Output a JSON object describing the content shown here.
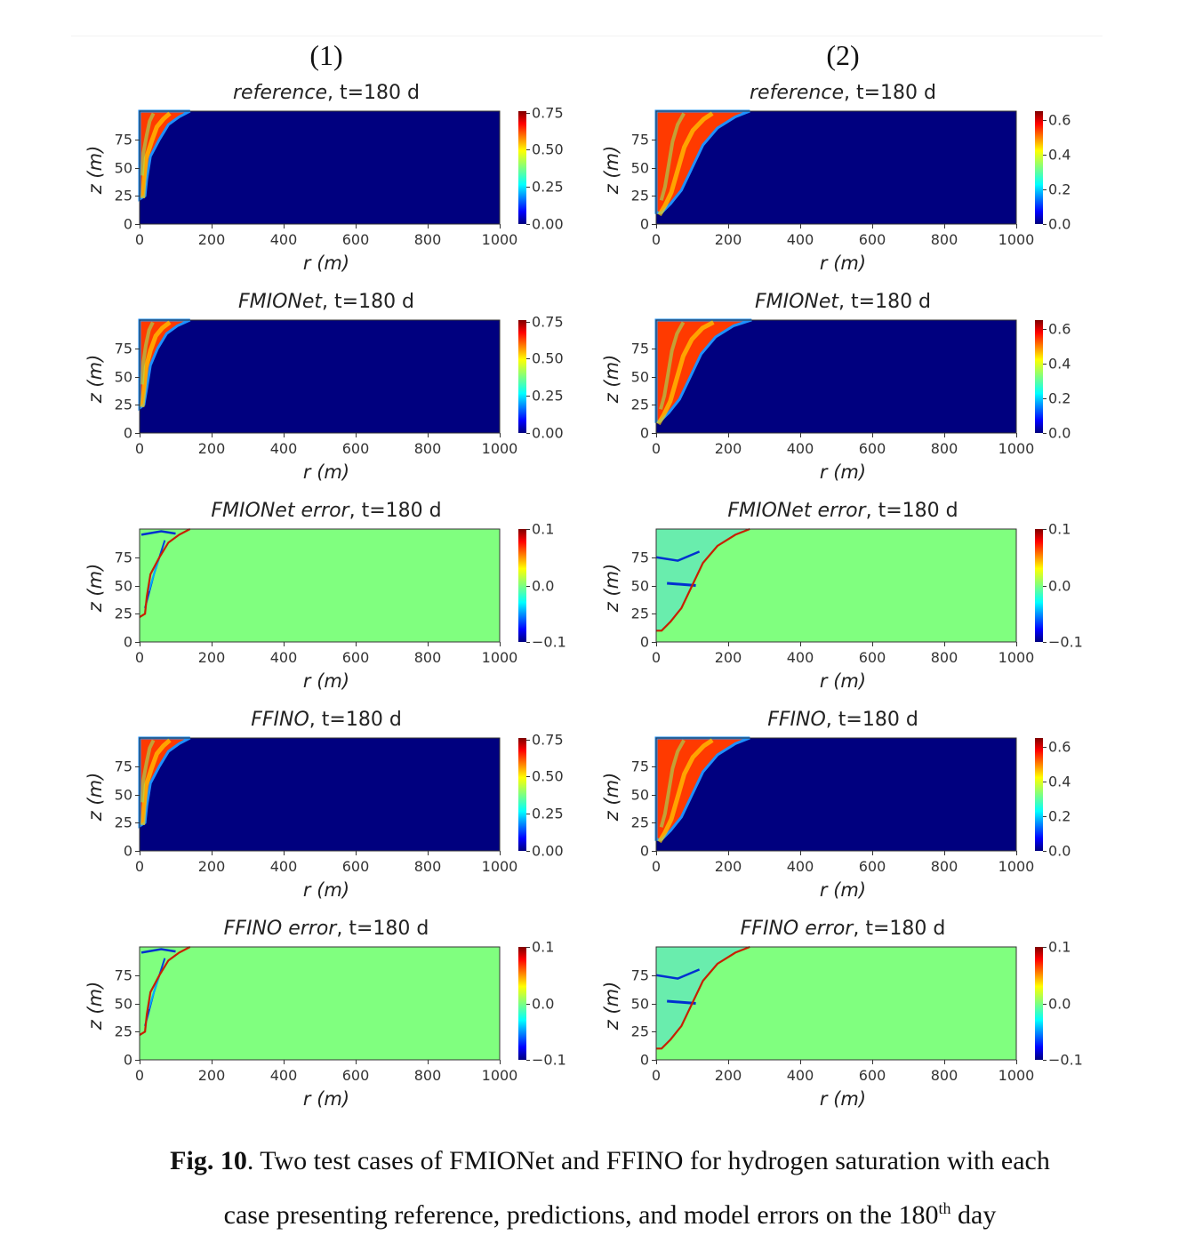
{
  "column_headers": [
    "(1)",
    "(2)"
  ],
  "caption": {
    "label": "Fig. 10",
    "line1": ". Two test cases of FMIONet and FFINO for hydrogen saturation with each",
    "line2_a": "case presenting reference, predictions, and model errors on the 180",
    "line2_sup": "th",
    "line2_b": " day"
  },
  "colors": {
    "sat_bg": "#00007f",
    "err_bg": "#80ff7f",
    "plume": "#ff3a00"
  },
  "chart_data": [
    {
      "type": "heatmap",
      "case": 1,
      "title_italic": "reference",
      "title_rest": ", t=180 d",
      "kind": "saturation",
      "xlabel": "r (m)",
      "ylabel": "z (m)",
      "xlim": [
        0,
        1000
      ],
      "ylim": [
        0,
        100
      ],
      "xticks": [
        "0",
        "200",
        "400",
        "600",
        "800",
        "1000"
      ],
      "yticks": [
        "0",
        "25",
        "50",
        "75"
      ],
      "clim": [
        0,
        0.76
      ],
      "cticks": [
        "0.00",
        "0.25",
        "0.50",
        "0.75"
      ],
      "front": [
        [
          0,
          100
        ],
        [
          140,
          100
        ],
        [
          110,
          95
        ],
        [
          80,
          88
        ],
        [
          55,
          75
        ],
        [
          30,
          60
        ],
        [
          20,
          40
        ],
        [
          15,
          25
        ],
        [
          0,
          22
        ]
      ]
    },
    {
      "type": "heatmap",
      "case": 2,
      "title_italic": "reference",
      "title_rest": ", t=180 d",
      "kind": "saturation",
      "xlabel": "r (m)",
      "ylabel": "z (m)",
      "xlim": [
        0,
        1000
      ],
      "ylim": [
        0,
        100
      ],
      "xticks": [
        "0",
        "200",
        "400",
        "600",
        "800",
        "1000"
      ],
      "yticks": [
        "0",
        "25",
        "50",
        "75"
      ],
      "clim": [
        0,
        0.65
      ],
      "cticks": [
        "0.0",
        "0.2",
        "0.4",
        "0.6"
      ],
      "front": [
        [
          0,
          100
        ],
        [
          260,
          100
        ],
        [
          220,
          95
        ],
        [
          170,
          85
        ],
        [
          130,
          70
        ],
        [
          100,
          50
        ],
        [
          70,
          30
        ],
        [
          40,
          18
        ],
        [
          15,
          10
        ],
        [
          0,
          10
        ]
      ]
    },
    {
      "type": "heatmap",
      "case": 1,
      "title_italic": "FMIONet",
      "title_rest": ", t=180 d",
      "kind": "saturation",
      "xlabel": "r (m)",
      "ylabel": "z (m)",
      "xlim": [
        0,
        1000
      ],
      "ylim": [
        0,
        100
      ],
      "xticks": [
        "0",
        "200",
        "400",
        "600",
        "800",
        "1000"
      ],
      "yticks": [
        "0",
        "25",
        "50",
        "75"
      ],
      "clim": [
        0,
        0.76
      ],
      "cticks": [
        "0.00",
        "0.25",
        "0.50",
        "0.75"
      ],
      "front": [
        [
          0,
          100
        ],
        [
          140,
          100
        ],
        [
          105,
          95
        ],
        [
          75,
          88
        ],
        [
          50,
          75
        ],
        [
          30,
          60
        ],
        [
          20,
          40
        ],
        [
          12,
          25
        ],
        [
          0,
          22
        ]
      ]
    },
    {
      "type": "heatmap",
      "case": 2,
      "title_italic": "FMIONet",
      "title_rest": ", t=180 d",
      "kind": "saturation",
      "xlabel": "r (m)",
      "ylabel": "z (m)",
      "xlim": [
        0,
        1000
      ],
      "ylim": [
        0,
        100
      ],
      "xticks": [
        "0",
        "200",
        "400",
        "600",
        "800",
        "1000"
      ],
      "yticks": [
        "0",
        "25",
        "50",
        "75"
      ],
      "clim": [
        0,
        0.65
      ],
      "cticks": [
        "0.0",
        "0.2",
        "0.4",
        "0.6"
      ],
      "front": [
        [
          0,
          100
        ],
        [
          265,
          100
        ],
        [
          215,
          95
        ],
        [
          165,
          85
        ],
        [
          125,
          70
        ],
        [
          95,
          50
        ],
        [
          65,
          30
        ],
        [
          35,
          18
        ],
        [
          10,
          10
        ],
        [
          0,
          10
        ]
      ]
    },
    {
      "type": "heatmap",
      "case": 1,
      "title_italic": "FMIONet error",
      "title_rest": ", t=180 d",
      "kind": "error",
      "xlabel": "r (m)",
      "ylabel": "z (m)",
      "xlim": [
        0,
        1000
      ],
      "ylim": [
        0,
        100
      ],
      "xticks": [
        "0",
        "200",
        "400",
        "600",
        "800",
        "1000"
      ],
      "yticks": [
        "0",
        "25",
        "50",
        "75"
      ],
      "clim": [
        -0.1,
        0.1
      ],
      "cticks": [
        "−0.1",
        "0.0",
        "0.1"
      ],
      "front": [
        [
          140,
          100
        ],
        [
          110,
          95
        ],
        [
          80,
          88
        ],
        [
          55,
          75
        ],
        [
          30,
          60
        ],
        [
          20,
          40
        ],
        [
          15,
          25
        ],
        [
          0,
          22
        ]
      ]
    },
    {
      "type": "heatmap",
      "case": 2,
      "title_italic": "FMIONet error",
      "title_rest": ", t=180 d",
      "kind": "error",
      "xlabel": "r (m)",
      "ylabel": "z (m)",
      "xlim": [
        0,
        1000
      ],
      "ylim": [
        0,
        100
      ],
      "xticks": [
        "0",
        "200",
        "400",
        "600",
        "800",
        "1000"
      ],
      "yticks": [
        "0",
        "25",
        "50",
        "75"
      ],
      "clim": [
        -0.1,
        0.1
      ],
      "cticks": [
        "−0.1",
        "0.0",
        "0.1"
      ],
      "front": [
        [
          260,
          100
        ],
        [
          220,
          95
        ],
        [
          170,
          85
        ],
        [
          130,
          70
        ],
        [
          100,
          50
        ],
        [
          70,
          30
        ],
        [
          40,
          18
        ],
        [
          15,
          10
        ],
        [
          0,
          10
        ]
      ]
    },
    {
      "type": "heatmap",
      "case": 1,
      "title_italic": "FFINO",
      "title_rest": ", t=180 d",
      "kind": "saturation",
      "xlabel": "r (m)",
      "ylabel": "z (m)",
      "xlim": [
        0,
        1000
      ],
      "ylim": [
        0,
        100
      ],
      "xticks": [
        "0",
        "200",
        "400",
        "600",
        "800",
        "1000"
      ],
      "yticks": [
        "0",
        "25",
        "50",
        "75"
      ],
      "clim": [
        0,
        0.76
      ],
      "cticks": [
        "0.00",
        "0.25",
        "0.50",
        "0.75"
      ],
      "front": [
        [
          0,
          100
        ],
        [
          140,
          100
        ],
        [
          110,
          95
        ],
        [
          80,
          88
        ],
        [
          55,
          75
        ],
        [
          30,
          60
        ],
        [
          20,
          40
        ],
        [
          15,
          25
        ],
        [
          0,
          22
        ]
      ]
    },
    {
      "type": "heatmap",
      "case": 2,
      "title_italic": "FFINO",
      "title_rest": ", t=180 d",
      "kind": "saturation",
      "xlabel": "r (m)",
      "ylabel": "z (m)",
      "xlim": [
        0,
        1000
      ],
      "ylim": [
        0,
        100
      ],
      "xticks": [
        "0",
        "200",
        "400",
        "600",
        "800",
        "1000"
      ],
      "yticks": [
        "0",
        "25",
        "50",
        "75"
      ],
      "clim": [
        0,
        0.65
      ],
      "cticks": [
        "0.0",
        "0.2",
        "0.4",
        "0.6"
      ],
      "front": [
        [
          0,
          100
        ],
        [
          260,
          100
        ],
        [
          220,
          95
        ],
        [
          170,
          85
        ],
        [
          130,
          70
        ],
        [
          100,
          50
        ],
        [
          70,
          30
        ],
        [
          40,
          18
        ],
        [
          15,
          10
        ],
        [
          0,
          10
        ]
      ]
    },
    {
      "type": "heatmap",
      "case": 1,
      "title_italic": "FFINO error",
      "title_rest": ", t=180 d",
      "kind": "error",
      "xlabel": "r (m)",
      "ylabel": "z (m)",
      "xlim": [
        0,
        1000
      ],
      "ylim": [
        0,
        100
      ],
      "xticks": [
        "0",
        "200",
        "400",
        "600",
        "800",
        "1000"
      ],
      "yticks": [
        "0",
        "25",
        "50",
        "75"
      ],
      "clim": [
        -0.1,
        0.1
      ],
      "cticks": [
        "−0.1",
        "0.0",
        "0.1"
      ],
      "front": [
        [
          140,
          100
        ],
        [
          110,
          95
        ],
        [
          80,
          88
        ],
        [
          55,
          75
        ],
        [
          30,
          60
        ],
        [
          20,
          40
        ],
        [
          15,
          25
        ],
        [
          0,
          22
        ]
      ]
    },
    {
      "type": "heatmap",
      "case": 2,
      "title_italic": "FFINO error",
      "title_rest": ", t=180 d",
      "kind": "error",
      "xlabel": "r (m)",
      "ylabel": "z (m)",
      "xlim": [
        0,
        1000
      ],
      "ylim": [
        0,
        100
      ],
      "xticks": [
        "0",
        "200",
        "400",
        "600",
        "800",
        "1000"
      ],
      "yticks": [
        "0",
        "25",
        "50",
        "75"
      ],
      "clim": [
        -0.1,
        0.1
      ],
      "cticks": [
        "−0.1",
        "0.0",
        "0.1"
      ],
      "front": [
        [
          260,
          100
        ],
        [
          220,
          95
        ],
        [
          170,
          85
        ],
        [
          130,
          70
        ],
        [
          100,
          50
        ],
        [
          70,
          30
        ],
        [
          40,
          18
        ],
        [
          15,
          10
        ],
        [
          0,
          10
        ]
      ]
    }
  ]
}
